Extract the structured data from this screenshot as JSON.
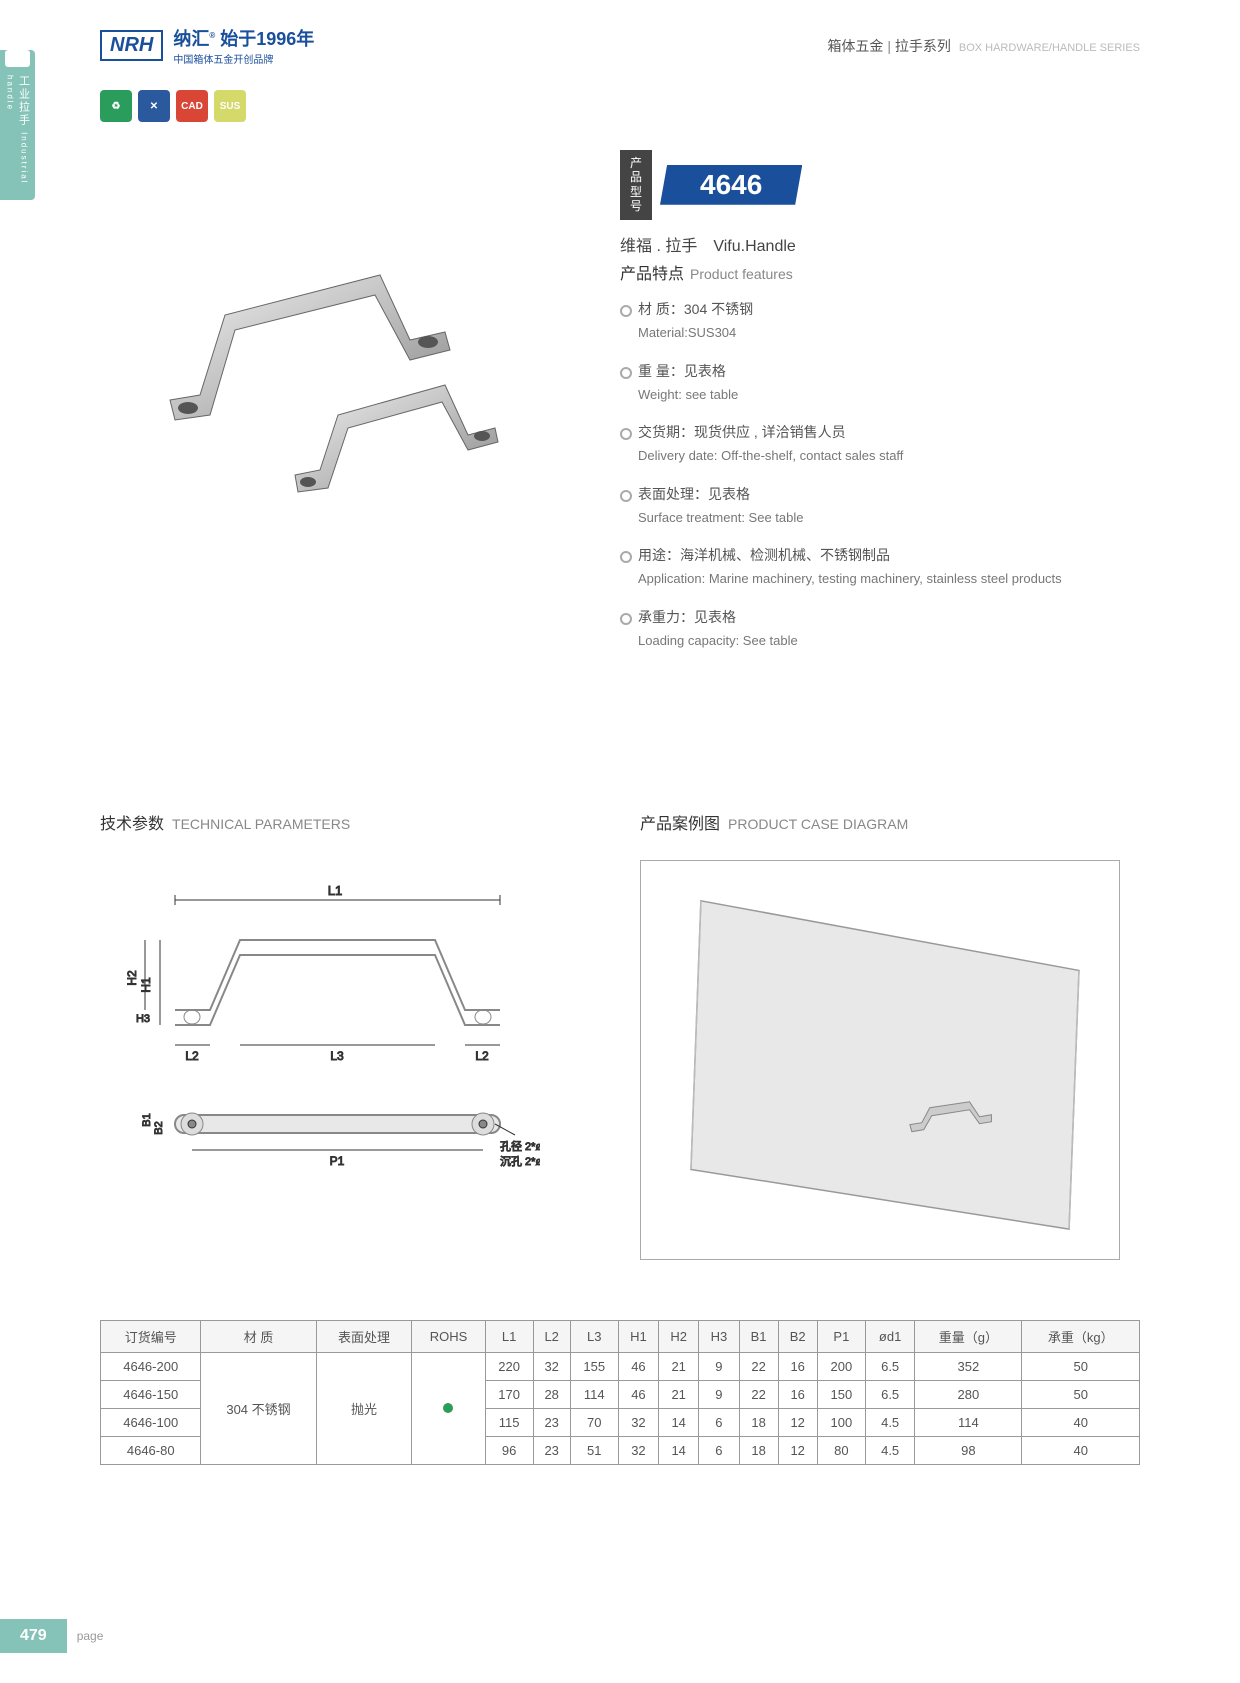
{
  "header": {
    "logo": "NRH",
    "brand_cn": "纳汇",
    "brand_year": "始于1996年",
    "brand_sub": "中国箱体五金开创品牌",
    "cat1": "箱体五金",
    "cat2": "拉手系列",
    "cat_en": "BOX HARDWARE/HANDLE SERIES"
  },
  "side_tab": {
    "cn": "工业拉手",
    "en": "Industrial handle"
  },
  "badges": [
    "♻",
    "✕",
    "CAD",
    "SUS"
  ],
  "model": {
    "label": "产品型号",
    "number": "4646",
    "name_cn": "维福 . 拉手",
    "name_en": "Vifu.Handle"
  },
  "features": {
    "title_cn": "产品特点",
    "title_en": "Product features",
    "items": [
      {
        "cn": "材  质：304 不锈钢",
        "en": "Material:SUS304"
      },
      {
        "cn": "重  量：见表格",
        "en": "Weight: see table"
      },
      {
        "cn": "交货期：现货供应 , 详洽销售人员",
        "en": "Delivery date: Off-the-shelf, contact sales staff"
      },
      {
        "cn": "表面处理：见表格",
        "en": "Surface treatment:  See table"
      },
      {
        "cn": "用途：海洋机械、检测机械、不锈钢制品",
        "en": "Application: Marine machinery, testing machinery, stainless steel products"
      },
      {
        "cn": "承重力：见表格",
        "en": "Loading capacity: See table"
      }
    ]
  },
  "sections": {
    "tech_cn": "技术参数",
    "tech_en": "TECHNICAL PARAMETERS",
    "case_cn": "产品案例图",
    "case_en": "PRODUCT CASE DIAGRAM"
  },
  "diagram_labels": {
    "L1": "L1",
    "L2": "L2",
    "L3": "L3",
    "H1": "H1",
    "H2": "H2",
    "H3": "H3",
    "B1": "B1",
    "B2": "B2",
    "P1": "P1",
    "hole1": "孔径 2*ød1",
    "hole2": "沉孔 2*ød2"
  },
  "table": {
    "headers": [
      "订货编号",
      "材    质",
      "表面处理",
      "ROHS",
      "L1",
      "L2",
      "L3",
      "H1",
      "H2",
      "H3",
      "B1",
      "B2",
      "P1",
      "ød1",
      "重量（g）",
      "承重（kg）"
    ],
    "material": "304 不锈钢",
    "surface": "抛光",
    "rows": [
      {
        "code": "4646-200",
        "v": [
          "220",
          "32",
          "155",
          "46",
          "21",
          "9",
          "22",
          "16",
          "200",
          "6.5",
          "352",
          "50"
        ]
      },
      {
        "code": "4646-150",
        "v": [
          "170",
          "28",
          "114",
          "46",
          "21",
          "9",
          "22",
          "16",
          "150",
          "6.5",
          "280",
          "50"
        ]
      },
      {
        "code": "4646-100",
        "v": [
          "115",
          "23",
          "70",
          "32",
          "14",
          "6",
          "18",
          "12",
          "100",
          "4.5",
          "114",
          "40"
        ]
      },
      {
        "code": "4646-80",
        "v": [
          "96",
          "23",
          "51",
          "32",
          "14",
          "6",
          "18",
          "12",
          "80",
          "4.5",
          "98",
          "40"
        ]
      }
    ]
  },
  "footer": {
    "page": "479",
    "label": "page"
  }
}
